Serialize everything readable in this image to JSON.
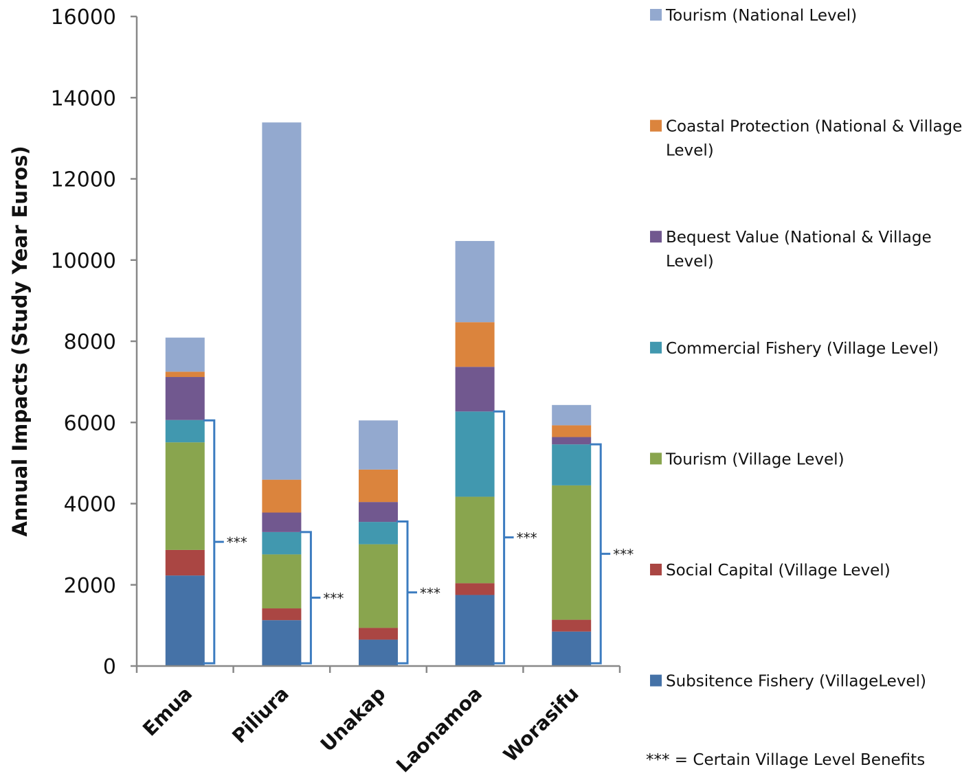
{
  "chart_data": {
    "type": "bar",
    "stacked": true,
    "title": "",
    "xlabel": "",
    "ylabel": "Annual Impacts (Study Year Euros)",
    "ylim": [
      0,
      16000
    ],
    "yticks": [
      0,
      2000,
      4000,
      6000,
      8000,
      10000,
      12000,
      14000,
      16000
    ],
    "grid": false,
    "legend_position": "right",
    "categories": [
      "Emua",
      "Piliura",
      "Unakap",
      "Laonamoa",
      "Worasifu"
    ],
    "series": [
      {
        "name": "Subsitence Fishery (VillageLevel)",
        "color": "#4572A7",
        "values": [
          2230,
          1130,
          650,
          1750,
          850
        ]
      },
      {
        "name": "Social Capital (Village Level)",
        "color": "#AA4643",
        "values": [
          630,
          290,
          290,
          290,
          290
        ]
      },
      {
        "name": "Tourism (Village Level)",
        "color": "#89A54E",
        "values": [
          2650,
          1330,
          2060,
          2130,
          3310
        ]
      },
      {
        "name": "Commercial Fishery (Village Level)",
        "color": "#4198AF",
        "values": [
          550,
          550,
          550,
          2100,
          1010
        ]
      },
      {
        "name": "Bequest Value (National & Village Level)",
        "color": "#71588F",
        "values": [
          1060,
          480,
          490,
          1100,
          180
        ]
      },
      {
        "name": "Coastal Protection (National & Village Level)",
        "color": "#DB843D",
        "values": [
          130,
          810,
          800,
          1100,
          290
        ]
      },
      {
        "name": "Tourism (National Level)",
        "color": "#93A9CF",
        "values": [
          840,
          8800,
          1210,
          2000,
          500
        ]
      }
    ],
    "legend_order": [
      {
        "line1": "Tourism (National Level)",
        "line2": "",
        "color": "#93A9CF"
      },
      {
        "line1": "Coastal Protection (National & Village",
        "line2": "Level)",
        "color": "#DB843D"
      },
      {
        "line1": "Bequest Value (National & Village",
        "line2": "Level)",
        "color": "#71588F"
      },
      {
        "line1": "Commercial Fishery (Village Level)",
        "line2": "",
        "color": "#4198AF"
      },
      {
        "line1": "Tourism (Village Level)",
        "line2": "",
        "color": "#89A54E"
      },
      {
        "line1": "Social Capital (Village Level)",
        "line2": "",
        "color": "#AA4643"
      },
      {
        "line1": "Subsitence Fishery (VillageLevel)",
        "line2": "",
        "color": "#4572A7"
      }
    ],
    "annotations": [
      {
        "category": "Emua",
        "text": "***",
        "bracket_top": 6050
      },
      {
        "category": "Piliura",
        "text": "***",
        "bracket_top": 3300
      },
      {
        "category": "Unakap",
        "text": "***",
        "bracket_top": 3560
      },
      {
        "category": "Laonamoa",
        "text": "***",
        "bracket_top": 6270
      },
      {
        "category": "Worasifu",
        "text": "***",
        "bracket_top": 5460
      }
    ],
    "annotation_note": "*** = Certain Village Level Benefits",
    "bracket_color": "#3C7CC0"
  }
}
